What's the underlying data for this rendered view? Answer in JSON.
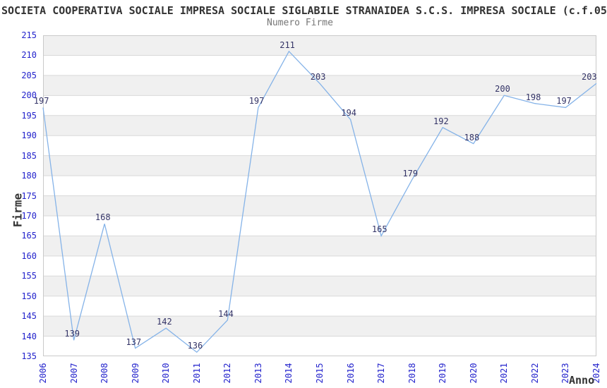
{
  "chart_data": {
    "type": "line",
    "title": "SOCIETA COOPERATIVA SOCIALE IMPRESA SOCIALE SIGLABILE STRANAIDEA S.C.S. IMPRESA SOCIALE (c.f.05",
    "subtitle": "Numero Firme",
    "xlabel": "Anno",
    "ylabel": "Firme",
    "x": [
      2006,
      2007,
      2008,
      2009,
      2010,
      2011,
      2012,
      2013,
      2014,
      2015,
      2016,
      2017,
      2018,
      2019,
      2020,
      2021,
      2022,
      2023,
      2024
    ],
    "values": [
      197,
      139,
      168,
      137,
      142,
      136,
      144,
      197,
      211,
      203,
      194,
      165,
      179,
      192,
      188,
      200,
      198,
      197,
      203
    ],
    "ylim": [
      135,
      215
    ],
    "ytick_step": 5,
    "grid": "horizontal-bands-alternating",
    "legend": "none",
    "data_labels_shown": true,
    "colors": {
      "line": "#85b3e8",
      "tick_labels": "#2222cc",
      "data_labels": "#333366",
      "band_fill": "#f0f0f0",
      "gridline": "#d9d9d9",
      "plot_border": "#c9c9c9",
      "title": "#333333",
      "subtitle": "#767676"
    }
  }
}
